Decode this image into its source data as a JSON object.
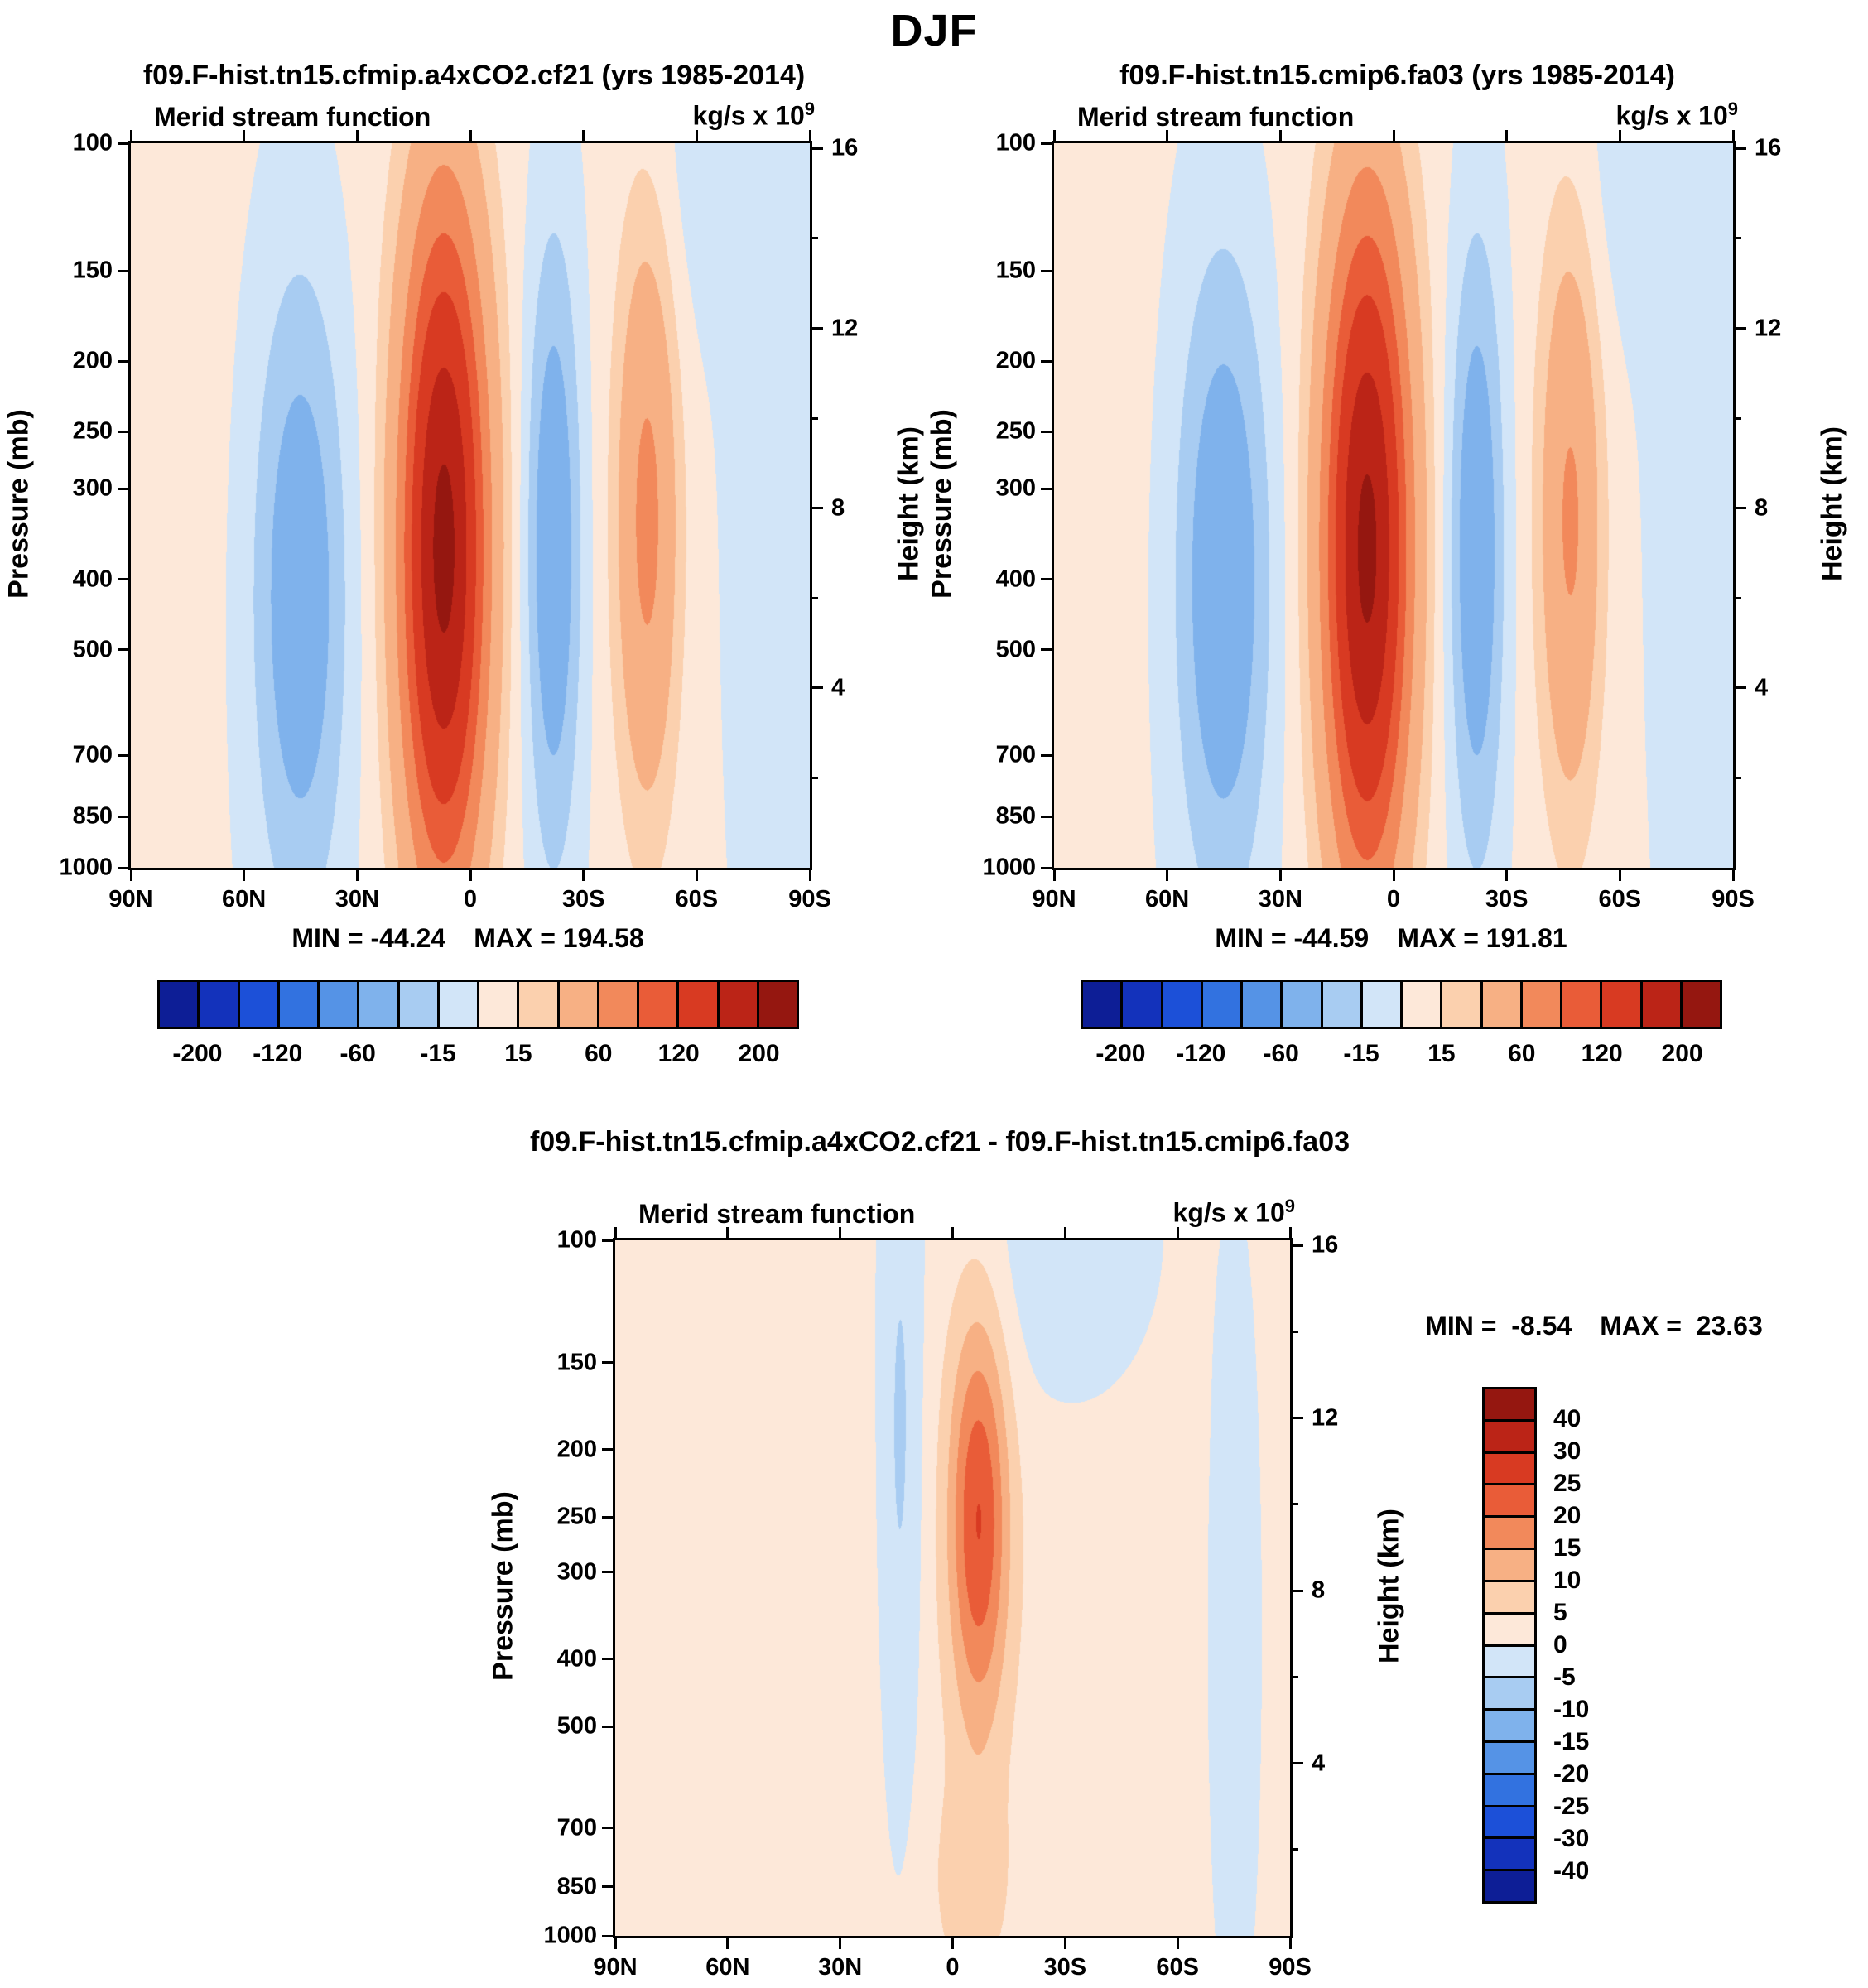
{
  "page_title": "DJF",
  "palette": [
    "#0d1e96",
    "#1332bb",
    "#1c50d8",
    "#3272e0",
    "#5593e6",
    "#7fb2ec",
    "#a8ccf2",
    "#d2e5f8",
    "#fde8d9",
    "#fbd0ae",
    "#f7b084",
    "#f2895b",
    "#e95c38",
    "#d83a22",
    "#bb2417",
    "#951710"
  ],
  "diff_colorbar": {
    "labels": [
      "40",
      "30",
      "25",
      "20",
      "15",
      "10",
      "5",
      "0",
      "-5",
      "-10",
      "-15",
      "-20",
      "-25",
      "-30",
      "-40"
    ]
  },
  "chart_data": [
    {
      "type": "heatmap",
      "title": "f09.F-hist.tn15.cfmip.a4xCO2.cf21 (yrs 1985-2014)",
      "subtitle": "Merid stream function",
      "units_base": "kg/s x 10",
      "units_exp": "9",
      "ylabel": "Pressure (mb)",
      "ylabel_right": "Height (km)",
      "min_label": "MIN = -44.24",
      "max_label": "MAX = 194.58",
      "x_tick_labels": [
        "90N",
        "60N",
        "30N",
        "0",
        "30S",
        "60S",
        "90S"
      ],
      "x_tick_lats": [
        90,
        60,
        30,
        0,
        -30,
        -60,
        -90
      ],
      "y_ticks_pressure": [
        "100",
        "150",
        "200",
        "250",
        "300",
        "400",
        "500",
        "700",
        "850",
        "1000"
      ],
      "y_ticks_height": [
        "16",
        "12",
        "8",
        "4"
      ],
      "y_minor_height": [
        14,
        10,
        6,
        2
      ],
      "y_scale": "log-pressure",
      "ylim_mb": [
        100,
        1000
      ],
      "levels": [
        -200,
        -160,
        -120,
        -90,
        -60,
        -30,
        -15,
        0,
        15,
        30,
        60,
        90,
        120,
        160,
        200
      ],
      "hbar_labels": [
        "-200",
        "-120",
        "-60",
        "-15",
        "15",
        "60",
        "120",
        "200"
      ],
      "hbar_label_edges": [
        1,
        3,
        5,
        7,
        9,
        11,
        13,
        15
      ],
      "field": {
        "blobs": [
          {
            "amp": 8,
            "lat": 15,
            "y": 0.5,
            "sx": 75,
            "sy": 0.85
          },
          {
            "amp": 205,
            "lat": 7,
            "y": 0.56,
            "sx": 11,
            "sy": 0.46
          },
          {
            "amp": -52,
            "lat": 45,
            "y": 0.62,
            "sx": 13,
            "sy": 0.46
          },
          {
            "amp": -54,
            "lat": -22,
            "y": 0.56,
            "sx": 7.5,
            "sy": 0.44
          },
          {
            "amp": 64,
            "lat": -47,
            "y": 0.52,
            "sx": 8,
            "sy": 0.4
          },
          {
            "amp": -12,
            "lat": -78,
            "y": 0.45,
            "sx": 10,
            "sy": 0.55
          },
          {
            "amp": -10,
            "lat": -60,
            "y": 0.05,
            "sx": 12,
            "sy": 0.25
          }
        ]
      }
    },
    {
      "type": "heatmap",
      "title": "f09.F-hist.tn15.cmip6.fa03 (yrs 1985-2014)",
      "subtitle": "Merid stream function",
      "units_base": "kg/s x 10",
      "units_exp": "9",
      "ylabel": "Pressure (mb)",
      "ylabel_right": "Height (km)",
      "min_label": "MIN = -44.59",
      "max_label": "MAX = 191.81",
      "x_tick_labels": [
        "90N",
        "60N",
        "30N",
        "0",
        "30S",
        "60S",
        "90S"
      ],
      "x_tick_lats": [
        90,
        60,
        30,
        0,
        -30,
        -60,
        -90
      ],
      "y_ticks_pressure": [
        "100",
        "150",
        "200",
        "250",
        "300",
        "400",
        "500",
        "700",
        "850",
        "1000"
      ],
      "y_ticks_height": [
        "16",
        "12",
        "8",
        "4"
      ],
      "y_minor_height": [
        14,
        10,
        6,
        2
      ],
      "y_scale": "log-pressure",
      "ylim_mb": [
        100,
        1000
      ],
      "levels": [
        -200,
        -160,
        -120,
        -90,
        -60,
        -30,
        -15,
        0,
        15,
        30,
        60,
        90,
        120,
        160,
        200
      ],
      "hbar_labels": [
        "-200",
        "-120",
        "-60",
        "-15",
        "15",
        "60",
        "120",
        "200"
      ],
      "hbar_label_edges": [
        1,
        3,
        5,
        7,
        9,
        11,
        13,
        15
      ],
      "field": {
        "blobs": [
          {
            "amp": 8,
            "lat": 15,
            "y": 0.5,
            "sx": 75,
            "sy": 0.85
          },
          {
            "amp": 202,
            "lat": 7,
            "y": 0.56,
            "sx": 11,
            "sy": 0.46
          },
          {
            "amp": -55,
            "lat": 45,
            "y": 0.6,
            "sx": 13,
            "sy": 0.46
          },
          {
            "amp": -54,
            "lat": -22,
            "y": 0.56,
            "sx": 7.5,
            "sy": 0.44
          },
          {
            "amp": 60,
            "lat": -47,
            "y": 0.52,
            "sx": 8,
            "sy": 0.4
          },
          {
            "amp": -12,
            "lat": -78,
            "y": 0.45,
            "sx": 10,
            "sy": 0.55
          },
          {
            "amp": -10,
            "lat": -60,
            "y": 0.05,
            "sx": 12,
            "sy": 0.25
          }
        ]
      }
    },
    {
      "type": "heatmap",
      "title": "f09.F-hist.tn15.cfmip.a4xCO2.cf21 - f09.F-hist.tn15.cmip6.fa03",
      "subtitle": "Merid stream function",
      "units_base": "kg/s x 10",
      "units_exp": "9",
      "ylabel": "Pressure (mb)",
      "ylabel_right": "Height (km)",
      "min_label": "MIN =  -8.54",
      "max_label": "MAX =  23.63",
      "x_tick_labels": [
        "90N",
        "60N",
        "30N",
        "0",
        "30S",
        "60S",
        "90S"
      ],
      "x_tick_lats": [
        90,
        60,
        30,
        0,
        -30,
        -60,
        -90
      ],
      "y_ticks_pressure": [
        "100",
        "150",
        "200",
        "250",
        "300",
        "400",
        "500",
        "700",
        "850",
        "1000"
      ],
      "y_ticks_height": [
        "16",
        "12",
        "8",
        "4"
      ],
      "y_minor_height": [
        14,
        10,
        6,
        2
      ],
      "y_scale": "log-pressure",
      "ylim_mb": [
        100,
        1000
      ],
      "levels": [
        -40,
        -30,
        -25,
        -20,
        -15,
        -10,
        -5,
        0,
        5,
        10,
        15,
        20,
        25,
        30,
        40
      ],
      "field": {
        "blobs": [
          {
            "amp": 2.8,
            "lat": -5,
            "y": 0.5,
            "sx": 85,
            "sy": 0.9
          },
          {
            "amp": 22.5,
            "lat": -7,
            "y": 0.4,
            "sx": 8,
            "sy": 0.3
          },
          {
            "amp": -8,
            "lat": 14,
            "y": 0.3,
            "sx": 6,
            "sy": 0.55
          },
          {
            "amp": -6,
            "lat": -75,
            "y": 0.55,
            "sx": 6,
            "sy": 0.45
          },
          {
            "amp": -6,
            "lat": -30,
            "y": 0.02,
            "sx": 22,
            "sy": 0.22
          },
          {
            "amp": 6,
            "lat": -5,
            "y": 0.93,
            "sx": 10,
            "sy": 0.15
          }
        ]
      }
    }
  ]
}
